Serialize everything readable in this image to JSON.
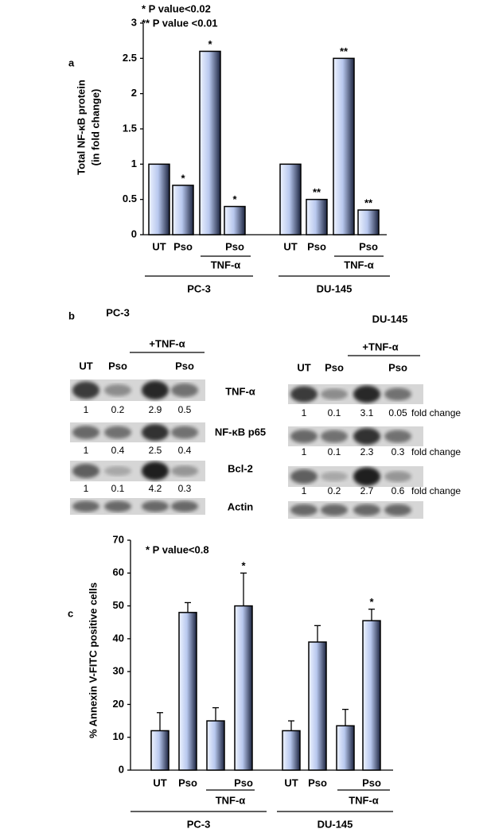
{
  "panel_labels": [
    "a",
    "b",
    "c"
  ],
  "chart_data": [
    {
      "type": "bar",
      "annotations": [
        "* P value<0.02",
        "** P value <0.01"
      ],
      "ylabel": [
        "Total NF-κB protein",
        "(in fold change)"
      ],
      "categories": [
        "UT",
        "Pso",
        null,
        "Pso",
        "UT",
        "Pso",
        null,
        "Pso"
      ],
      "values": [
        1,
        0.7,
        2.6,
        0.4,
        1,
        0.5,
        2.5,
        0.35
      ],
      "significance": [
        null,
        "*",
        "*",
        "*",
        null,
        "**",
        "**",
        "**"
      ],
      "subgroup_label": "TNF-α",
      "groups": [
        "PC-3",
        "DU-145"
      ],
      "ylim": [
        0,
        3
      ],
      "yticks": [
        0,
        0.5,
        1,
        1.5,
        2,
        2.5,
        3
      ]
    },
    {
      "type": "bar",
      "annotations": [
        "* P value<0.8"
      ],
      "ylabel": [
        "% Annexin V-FITC positive cells"
      ],
      "categories": [
        "UT",
        "Pso",
        null,
        "Pso",
        "UT",
        "Pso",
        null,
        "Pso"
      ],
      "values": [
        12,
        48,
        15,
        50,
        12,
        39,
        13.5,
        45.5
      ],
      "errors": [
        5.5,
        3,
        4,
        10,
        3,
        5,
        5,
        3.5
      ],
      "significance": [
        null,
        null,
        null,
        "*",
        null,
        null,
        null,
        "*"
      ],
      "subgroup_label": "TNF-α",
      "groups": [
        "PC-3",
        "DU-145"
      ],
      "ylim": [
        0,
        70
      ],
      "yticks": [
        0,
        10,
        20,
        30,
        40,
        50,
        60,
        70
      ]
    }
  ],
  "blot": {
    "row_labels": [
      "TNF-α",
      "NF-κB p65",
      "Bcl-2",
      "Actin"
    ],
    "unit": "fold change",
    "panels": [
      {
        "title": "PC-3",
        "treatment": "+TNF-α",
        "lanes": [
          "UT",
          "Pso",
          null,
          "Pso"
        ],
        "fold": [
          [
            1,
            0.2,
            2.9,
            0.5
          ],
          [
            1,
            0.4,
            2.5,
            0.4
          ],
          [
            1,
            0.1,
            4.2,
            0.3
          ]
        ]
      },
      {
        "title": "DU-145",
        "treatment": "+TNF-α",
        "lanes": [
          "UT",
          "Pso",
          null,
          "Pso"
        ],
        "fold": [
          [
            1,
            0.1,
            3.1,
            0.05
          ],
          [
            1,
            0.1,
            2.3,
            0.3
          ],
          [
            1,
            0.2,
            2.7,
            0.6
          ]
        ]
      }
    ]
  }
}
